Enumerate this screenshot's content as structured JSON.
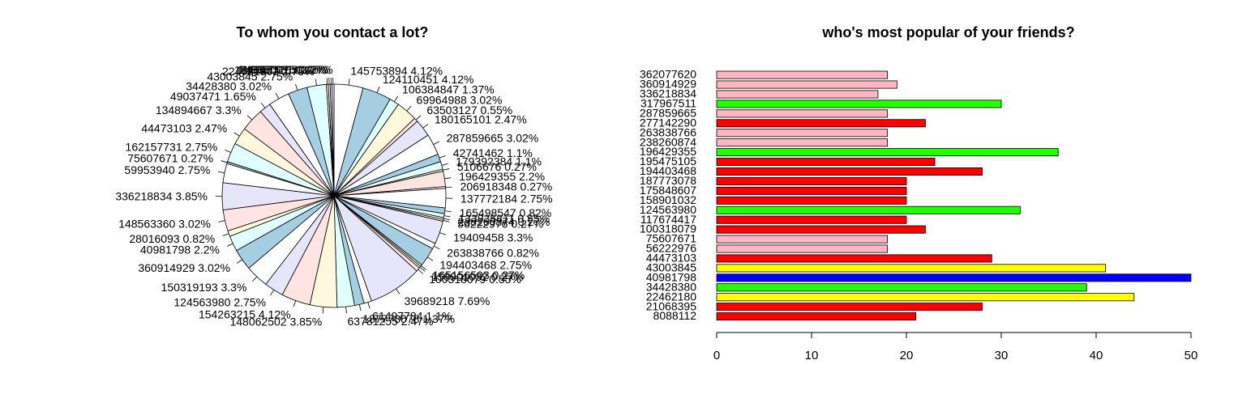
{
  "chart_data": [
    {
      "type": "pie",
      "title": "To whom you contact a lot?",
      "colors": [
        "#ffffff",
        "#a6cee3",
        "#e0ffff",
        "#fff8dc",
        "#ffe4e1",
        "#e6e6fa"
      ],
      "slices": [
        {
          "label": "145753894 4.12%",
          "value": 4.12
        },
        {
          "label": "124110451 4.12%",
          "value": 4.12
        },
        {
          "label": "106384847 1.37%",
          "value": 1.37
        },
        {
          "label": "69964988 3.02%",
          "value": 3.02
        },
        {
          "label": "63503127 0.55%",
          "value": 0.55
        },
        {
          "label": "180165101 2.47%",
          "value": 2.47
        },
        {
          "label": "287859665 3.02%",
          "value": 3.02
        },
        {
          "label": "42741462 1.1%",
          "value": 1.1
        },
        {
          "label": "179392384 1.1%",
          "value": 1.1
        },
        {
          "label": "5106676 0.27%",
          "value": 0.27
        },
        {
          "label": "196429355 2.2%",
          "value": 2.2
        },
        {
          "label": "206918348 0.27%",
          "value": 0.27
        },
        {
          "label": "137772184 2.75%",
          "value": 2.75
        },
        {
          "label": "165498547 0.82%",
          "value": 0.82
        },
        {
          "label": "133935811 0.55%",
          "value": 0.55
        },
        {
          "label": "238260874 0.27%",
          "value": 0.27
        },
        {
          "label": "56222976 0.27%",
          "value": 0.27
        },
        {
          "label": "19409458 3.3%",
          "value": 3.3
        },
        {
          "label": "263838766 0.82%",
          "value": 0.82
        },
        {
          "label": "194403468 2.75%",
          "value": 2.75
        },
        {
          "label": "165156503 0.27%",
          "value": 0.27
        },
        {
          "label": "158901032 0.27%",
          "value": 0.27
        },
        {
          "label": "100318079 0.55%",
          "value": 0.55
        },
        {
          "label": "39689218 7.69%",
          "value": 7.69
        },
        {
          "label": "61497784 1.1%",
          "value": 1.1
        },
        {
          "label": "187773078 1.37%",
          "value": 1.37
        },
        {
          "label": "63781255 2.47%",
          "value": 2.47
        },
        {
          "label": "148062502 3.85%",
          "value": 3.85
        },
        {
          "label": "154263215 4.12%",
          "value": 4.12
        },
        {
          "label": "124563980 2.75%",
          "value": 2.75
        },
        {
          "label": "150319193 3.3%",
          "value": 3.3
        },
        {
          "label": "360914929 3.02%",
          "value": 3.02
        },
        {
          "label": "40981798 2.2%",
          "value": 2.2
        },
        {
          "label": "28016093 0.82%",
          "value": 0.82
        },
        {
          "label": "148563360 3.02%",
          "value": 3.02
        },
        {
          "label": "336218834 3.85%",
          "value": 3.85
        },
        {
          "label": "59953940 2.75%",
          "value": 2.75
        },
        {
          "label": "75607671 0.27%",
          "value": 0.27
        },
        {
          "label": "162157731 2.75%",
          "value": 2.75
        },
        {
          "label": "44473103 2.47%",
          "value": 2.47
        },
        {
          "label": "134894667 3.3%",
          "value": 3.3
        },
        {
          "label": "49037471 1.65%",
          "value": 1.65
        },
        {
          "label": "34428380 3.02%",
          "value": 3.02
        },
        {
          "label": "43003845 2.75%",
          "value": 2.75
        },
        {
          "label": "224621802 2.75%",
          "value": 2.75
        },
        {
          "label": "180595725 0.27%",
          "value": 0.27
        },
        {
          "label": "116957631 0.27%",
          "value": 0.27
        },
        {
          "label": "149560275 0.27%",
          "value": 0.27
        },
        {
          "label": "149473105 0.27%",
          "value": 0.27
        }
      ]
    },
    {
      "type": "bar",
      "orientation": "horizontal",
      "title": "who's most popular of your friends?",
      "categories": [
        "362077620",
        "360914929",
        "336218834",
        "317967511",
        "287859665",
        "277142290",
        "263838766",
        "238260874",
        "196429355",
        "195475105",
        "194403468",
        "187773078",
        "175848607",
        "158901032",
        "124563980",
        "117674417",
        "100318079",
        "75607671",
        "56222976",
        "44473103",
        "43003845",
        "40981798",
        "34428380",
        "22462180",
        "21068395",
        "8088112"
      ],
      "values": [
        18,
        19,
        17,
        30,
        18,
        22,
        18,
        18,
        36,
        23,
        28,
        20,
        20,
        20,
        32,
        20,
        22,
        18,
        18,
        29,
        41,
        50,
        39,
        44,
        28,
        21
      ],
      "bar_colors": [
        "#ffb6c1",
        "#ffb6c1",
        "#ffb6c1",
        "#22ff00",
        "#ffb6c1",
        "#ff0000",
        "#ffb6c1",
        "#ffb6c1",
        "#22ff00",
        "#ff0000",
        "#ff0000",
        "#ff0000",
        "#ff0000",
        "#ff0000",
        "#22ff00",
        "#ff0000",
        "#ff0000",
        "#ffb6c1",
        "#ffb6c1",
        "#ff0000",
        "#ffff00",
        "#0000ff",
        "#22ff00",
        "#ffff00",
        "#ff0000",
        "#ff0000"
      ],
      "xlim": [
        0,
        50
      ],
      "xticks": [
        0,
        10,
        20,
        30,
        40,
        50
      ],
      "xlabel": "",
      "ylabel": ""
    }
  ]
}
